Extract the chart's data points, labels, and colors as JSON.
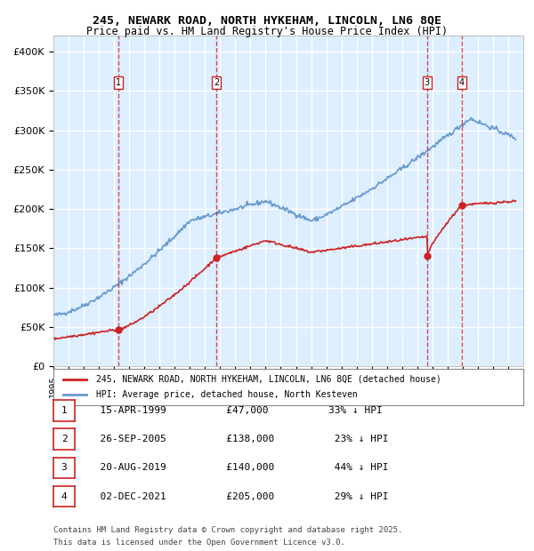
{
  "title_line1": "245, NEWARK ROAD, NORTH HYKEHAM, LINCOLN, LN6 8QE",
  "title_line2": "Price paid vs. HM Land Registry's House Price Index (HPI)",
  "ylabel": "",
  "background_color": "#ffffff",
  "plot_bg_color": "#ddeeff",
  "grid_color": "#ffffff",
  "hpi_color": "#6699cc",
  "price_color": "#cc2222",
  "sale_marker_color": "#cc2222",
  "sale_vline_color": "#cc2222",
  "yticks": [
    0,
    50000,
    100000,
    150000,
    200000,
    250000,
    300000,
    350000,
    400000
  ],
  "ytick_labels": [
    "£0",
    "£50K",
    "£100K",
    "£150K",
    "£200K",
    "£250K",
    "£300K",
    "£350K",
    "£400K"
  ],
  "ylim": [
    0,
    420000
  ],
  "sales": [
    {
      "num": 1,
      "date": "15-APR-1999",
      "year": 1999.29,
      "price": 47000,
      "pct": "33%",
      "dir": "↓"
    },
    {
      "num": 2,
      "date": "26-SEP-2005",
      "year": 2005.74,
      "price": 138000,
      "pct": "23%",
      "dir": "↓"
    },
    {
      "num": 3,
      "date": "20-AUG-2019",
      "year": 2019.64,
      "price": 140000,
      "pct": "44%",
      "dir": "↓"
    },
    {
      "num": 4,
      "date": "02-DEC-2021",
      "year": 2021.92,
      "price": 205000,
      "pct": "29%",
      "dir": "↓"
    }
  ],
  "legend_entries": [
    "245, NEWARK ROAD, NORTH HYKEHAM, LINCOLN, LN6 8QE (detached house)",
    "HPI: Average price, detached house, North Kesteven"
  ],
  "footer_line1": "Contains HM Land Registry data © Crown copyright and database right 2025.",
  "footer_line2": "This data is licensed under the Open Government Licence v3.0."
}
